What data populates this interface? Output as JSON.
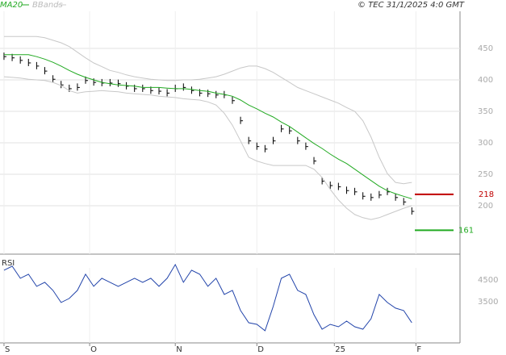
{
  "header": {
    "legend": [
      "MA20",
      "BBands"
    ],
    "source": "© TEC 31/1/2025 4:0 GMT"
  },
  "chart_data": [
    {
      "type": "line",
      "x": [
        0,
        2,
        4,
        6,
        8,
        10,
        12,
        14,
        16,
        18,
        20,
        22,
        24,
        26,
        28,
        30,
        32,
        34,
        36,
        38,
        40,
        42,
        44,
        46,
        48,
        50,
        52,
        54,
        56,
        58,
        60,
        62,
        64,
        66,
        68,
        70,
        72,
        74,
        76,
        78,
        80,
        82,
        84,
        86,
        88,
        90,
        92,
        94,
        96,
        98,
        100
      ],
      "xlim": [
        -1,
        110.8
      ],
      "xticks": [
        {
          "value": 0,
          "label": "S"
        },
        {
          "value": 21,
          "label": "O"
        },
        {
          "value": 42,
          "label": "N"
        },
        {
          "value": 62,
          "label": "D"
        },
        {
          "value": 81,
          "label": "25"
        },
        {
          "value": 101,
          "label": "F"
        }
      ],
      "ylim": [
        123,
        527
      ],
      "yticks": [
        200,
        250,
        300,
        350,
        400,
        450
      ],
      "grid": true,
      "series": [
        {
          "color": "#000000",
          "values": [
            437,
            435,
            431,
            427,
            422,
            414,
            401,
            392,
            386,
            388,
            399,
            396,
            395,
            395,
            394,
            390,
            386,
            386,
            383,
            382,
            379,
            386,
            388,
            383,
            379,
            378,
            376,
            376,
            367,
            335,
            303,
            294,
            290,
            303,
            322,
            319,
            303,
            294,
            271,
            239,
            232,
            230,
            224,
            222,
            215,
            213,
            217,
            222,
            213,
            206,
            191
          ]
        },
        {
          "name": "MA20",
          "color": "#22aa22",
          "values": [
            440,
            440,
            440,
            440,
            437,
            433,
            428,
            422,
            415,
            409,
            404,
            400,
            396,
            394,
            392,
            391,
            390,
            388,
            388,
            388,
            387,
            386,
            386,
            385,
            383,
            382,
            379,
            377,
            374,
            368,
            360,
            354,
            347,
            341,
            333,
            326,
            317,
            308,
            299,
            291,
            282,
            274,
            267,
            258,
            249,
            240,
            231,
            224,
            219,
            215,
            211
          ]
        },
        {
          "name": "BBands",
          "color": "#c8c8c8",
          "upper": [
            469,
            469,
            469,
            469,
            469,
            467,
            463,
            459,
            453,
            444,
            435,
            427,
            421,
            415,
            412,
            408,
            405,
            403,
            401,
            400,
            399,
            399,
            400,
            400,
            401,
            403,
            405,
            409,
            414,
            419,
            422,
            422,
            418,
            412,
            404,
            396,
            388,
            383,
            378,
            373,
            368,
            363,
            356,
            350,
            335,
            309,
            277,
            251,
            237,
            235,
            237
          ],
          "lower": [
            405,
            404,
            403,
            401,
            400,
            399,
            396,
            391,
            383,
            379,
            381,
            382,
            383,
            382,
            381,
            379,
            378,
            377,
            376,
            374,
            373,
            372,
            370,
            369,
            368,
            365,
            360,
            347,
            328,
            303,
            277,
            271,
            267,
            264,
            264,
            264,
            264,
            264,
            258,
            245,
            226,
            209,
            196,
            186,
            181,
            178,
            181,
            186,
            191,
            196,
            200
          ]
        }
      ],
      "levels": [
        {
          "value": 218,
          "color": "#c00000"
        },
        {
          "value": 161,
          "color": "#22aa22"
        }
      ]
    },
    {
      "type": "line",
      "title": "RSI",
      "x": [
        0,
        2,
        4,
        6,
        8,
        10,
        12,
        14,
        16,
        18,
        20,
        22,
        24,
        26,
        28,
        30,
        32,
        34,
        36,
        38,
        40,
        42,
        44,
        46,
        48,
        50,
        52,
        54,
        56,
        58,
        60,
        62,
        64,
        66,
        68,
        70,
        72,
        74,
        76,
        78,
        80,
        82,
        84,
        86,
        88,
        90,
        92,
        94,
        96,
        98,
        100
      ],
      "xlim": [
        -1,
        110.8
      ],
      "ylim": [
        1610,
        5570
      ],
      "yticks": [
        3500,
        4500
      ],
      "series": [
        {
          "color": "#2244aa",
          "values": [
            4944,
            5130,
            4574,
            4759,
            4204,
            4389,
            4019,
            3463,
            3648,
            4019,
            4759,
            4204,
            4574,
            4389,
            4204,
            4389,
            4574,
            4389,
            4574,
            4204,
            4574,
            5204,
            4389,
            4944,
            4759,
            4204,
            4574,
            3833,
            4019,
            3093,
            2537,
            2463,
            2167,
            3278,
            4574,
            4759,
            4019,
            3833,
            2907,
            2241,
            2463,
            2352,
            2611,
            2352,
            2241,
            2722,
            3833,
            3463,
            3204,
            3093,
            2537
          ]
        }
      ]
    }
  ]
}
